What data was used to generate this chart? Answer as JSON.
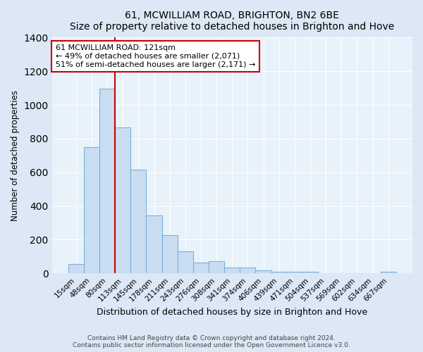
{
  "title": "61, MCWILLIAM ROAD, BRIGHTON, BN2 6BE",
  "subtitle": "Size of property relative to detached houses in Brighton and Hove",
  "xlabel": "Distribution of detached houses by size in Brighton and Hove",
  "ylabel": "Number of detached properties",
  "categories": [
    "15sqm",
    "48sqm",
    "80sqm",
    "113sqm",
    "145sqm",
    "178sqm",
    "211sqm",
    "243sqm",
    "276sqm",
    "308sqm",
    "341sqm",
    "374sqm",
    "406sqm",
    "439sqm",
    "471sqm",
    "504sqm",
    "537sqm",
    "569sqm",
    "602sqm",
    "634sqm",
    "667sqm"
  ],
  "values": [
    55,
    750,
    1095,
    865,
    615,
    345,
    228,
    130,
    65,
    72,
    33,
    35,
    20,
    10,
    8,
    10,
    0,
    0,
    0,
    0,
    10
  ],
  "bar_color": "#c9ddf2",
  "bar_edge_color": "#7ab0d8",
  "vline_color": "#cc0000",
  "annotation_text": "61 MCWILLIAM ROAD: 121sqm\n← 49% of detached houses are smaller (2,071)\n51% of semi-detached houses are larger (2,171) →",
  "annotation_box_color": "#ffffff",
  "annotation_edge_color": "#cc0000",
  "ylim": [
    0,
    1400
  ],
  "yticks": [
    0,
    200,
    400,
    600,
    800,
    1000,
    1200,
    1400
  ],
  "footer1": "Contains HM Land Registry data © Crown copyright and database right 2024.",
  "footer2": "Contains public sector information licensed under the Open Government Licence v3.0.",
  "bg_color": "#dce8f5",
  "plot_bg_color": "#e8f2fb"
}
